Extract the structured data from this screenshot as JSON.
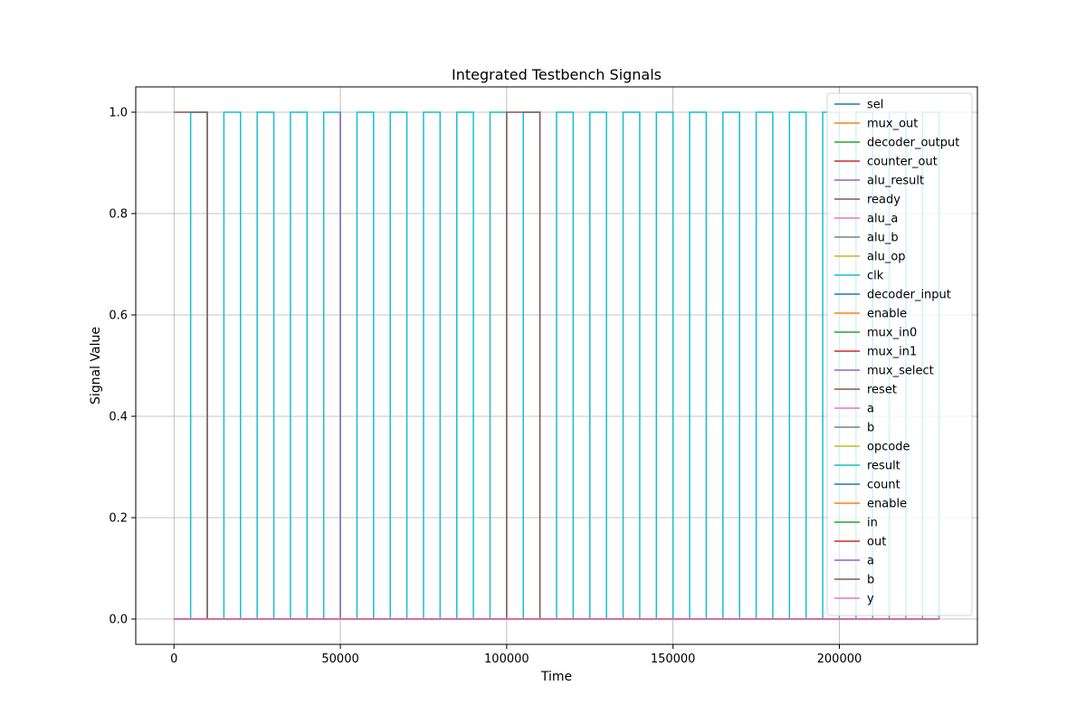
{
  "chart_data": {
    "type": "line",
    "title": "Integrated Testbench Signals",
    "xlabel": "Time",
    "ylabel": "Signal Value",
    "xlim": [
      -11500,
      241500
    ],
    "ylim": [
      -0.05,
      1.05
    ],
    "xticks": [
      0,
      50000,
      100000,
      150000,
      200000
    ],
    "xtick_labels": [
      "0",
      "50000",
      "100000",
      "150000",
      "200000"
    ],
    "yticks": [
      0.0,
      0.2,
      0.4,
      0.6,
      0.8,
      1.0
    ],
    "ytick_labels": [
      "0.0",
      "0.2",
      "0.4",
      "0.6",
      "0.8",
      "1.0"
    ],
    "grid": true,
    "legend_position": "upper-right",
    "series": [
      {
        "name": "sel",
        "color": "#1f77b4",
        "drawstyle": "steps-post",
        "points": [
          [
            0,
            0
          ],
          [
            230000,
            0
          ]
        ]
      },
      {
        "name": "mux_out",
        "color": "#ff7f0e",
        "drawstyle": "steps-post",
        "points": [
          [
            0,
            0
          ],
          [
            230000,
            0
          ]
        ]
      },
      {
        "name": "decoder_output",
        "color": "#2ca02c",
        "drawstyle": "steps-post",
        "points": [
          [
            0,
            0
          ],
          [
            230000,
            0
          ]
        ]
      },
      {
        "name": "counter_out",
        "color": "#d62728",
        "drawstyle": "steps-post",
        "points": [
          [
            0,
            0
          ],
          [
            230000,
            0
          ]
        ]
      },
      {
        "name": "alu_result",
        "color": "#9467bd",
        "drawstyle": "steps-post",
        "points": [
          [
            0,
            0
          ],
          [
            230000,
            0
          ]
        ]
      },
      {
        "name": "ready",
        "color": "#8c564b",
        "drawstyle": "steps-post",
        "points": [
          [
            0,
            0
          ],
          [
            230000,
            0
          ]
        ]
      },
      {
        "name": "alu_a",
        "color": "#e377c2",
        "drawstyle": "steps-post",
        "points": [
          [
            0,
            0
          ],
          [
            230000,
            0
          ]
        ]
      },
      {
        "name": "alu_b",
        "color": "#7f7f7f",
        "drawstyle": "steps-post",
        "points": [
          [
            0,
            0
          ],
          [
            230000,
            0
          ]
        ]
      },
      {
        "name": "alu_op",
        "color": "#bcbd22",
        "drawstyle": "steps-post",
        "points": [
          [
            0,
            0
          ],
          [
            230000,
            0
          ]
        ]
      },
      {
        "name": "clk",
        "color": "#17becf",
        "drawstyle": "steps-post",
        "points": [
          [
            0,
            0
          ],
          [
            5000,
            1
          ],
          [
            10000,
            0
          ],
          [
            15000,
            1
          ],
          [
            20000,
            0
          ],
          [
            25000,
            1
          ],
          [
            30000,
            0
          ],
          [
            35000,
            1
          ],
          [
            40000,
            0
          ],
          [
            45000,
            1
          ],
          [
            50000,
            0
          ],
          [
            55000,
            1
          ],
          [
            60000,
            0
          ],
          [
            65000,
            1
          ],
          [
            70000,
            0
          ],
          [
            75000,
            1
          ],
          [
            80000,
            0
          ],
          [
            85000,
            1
          ],
          [
            90000,
            0
          ],
          [
            95000,
            1
          ],
          [
            100000,
            0
          ],
          [
            105000,
            1
          ],
          [
            110000,
            0
          ],
          [
            115000,
            1
          ],
          [
            120000,
            0
          ],
          [
            125000,
            1
          ],
          [
            130000,
            0
          ],
          [
            135000,
            1
          ],
          [
            140000,
            0
          ],
          [
            145000,
            1
          ],
          [
            150000,
            0
          ],
          [
            155000,
            1
          ],
          [
            160000,
            0
          ],
          [
            165000,
            1
          ],
          [
            170000,
            0
          ],
          [
            175000,
            1
          ],
          [
            180000,
            0
          ],
          [
            185000,
            1
          ],
          [
            190000,
            0
          ],
          [
            195000,
            1
          ],
          [
            200000,
            0
          ],
          [
            205000,
            1
          ],
          [
            210000,
            0
          ],
          [
            215000,
            1
          ],
          [
            220000,
            0
          ],
          [
            225000,
            1
          ],
          [
            230000,
            0
          ]
        ]
      },
      {
        "name": "decoder_input",
        "color": "#1f77b4",
        "drawstyle": "steps-post",
        "points": [
          [
            0,
            0
          ],
          [
            230000,
            0
          ]
        ]
      },
      {
        "name": "enable",
        "color": "#ff7f0e",
        "drawstyle": "steps-post",
        "points": [
          [
            0,
            0
          ],
          [
            230000,
            0
          ]
        ]
      },
      {
        "name": "mux_in0",
        "color": "#2ca02c",
        "drawstyle": "steps-post",
        "points": [
          [
            0,
            0
          ],
          [
            230000,
            0
          ]
        ]
      },
      {
        "name": "mux_in1",
        "color": "#d62728",
        "drawstyle": "steps-post",
        "points": [
          [
            0,
            0
          ],
          [
            230000,
            0
          ]
        ]
      },
      {
        "name": "mux_select",
        "color": "#9467bd",
        "drawstyle": "steps-post",
        "points": [
          [
            0,
            0
          ],
          [
            50000,
            1
          ],
          [
            50000,
            0
          ],
          [
            230000,
            0
          ]
        ]
      },
      {
        "name": "reset",
        "color": "#8c564b",
        "drawstyle": "steps-post",
        "points": [
          [
            0,
            1
          ],
          [
            10000,
            0
          ],
          [
            100000,
            1
          ],
          [
            110000,
            0
          ],
          [
            230000,
            0
          ]
        ]
      },
      {
        "name": "a",
        "color": "#e377c2",
        "drawstyle": "steps-post",
        "points": [
          [
            0,
            0
          ],
          [
            230000,
            0
          ]
        ]
      },
      {
        "name": "b",
        "color": "#7f7f7f",
        "drawstyle": "steps-post",
        "points": [
          [
            0,
            0
          ],
          [
            230000,
            0
          ]
        ]
      },
      {
        "name": "opcode",
        "color": "#bcbd22",
        "drawstyle": "steps-post",
        "points": [
          [
            0,
            0
          ],
          [
            230000,
            0
          ]
        ]
      },
      {
        "name": "result",
        "color": "#17becf",
        "drawstyle": "steps-post",
        "points": [
          [
            0,
            0
          ],
          [
            230000,
            0
          ]
        ]
      },
      {
        "name": "count",
        "color": "#1f77b4",
        "drawstyle": "steps-post",
        "points": [
          [
            0,
            0
          ],
          [
            230000,
            0
          ]
        ]
      },
      {
        "name": "enable",
        "color": "#ff7f0e",
        "drawstyle": "steps-post",
        "points": [
          [
            0,
            0
          ],
          [
            230000,
            0
          ]
        ]
      },
      {
        "name": "in",
        "color": "#2ca02c",
        "drawstyle": "steps-post",
        "points": [
          [
            0,
            0
          ],
          [
            230000,
            0
          ]
        ]
      },
      {
        "name": "out",
        "color": "#d62728",
        "drawstyle": "steps-post",
        "points": [
          [
            0,
            0
          ],
          [
            230000,
            0
          ]
        ]
      },
      {
        "name": "a",
        "color": "#9467bd",
        "drawstyle": "steps-post",
        "points": [
          [
            0,
            0
          ],
          [
            230000,
            0
          ]
        ]
      },
      {
        "name": "b",
        "color": "#8c564b",
        "drawstyle": "steps-post",
        "points": [
          [
            0,
            0
          ],
          [
            230000,
            0
          ]
        ]
      },
      {
        "name": "y",
        "color": "#e377c2",
        "drawstyle": "steps-post",
        "points": [
          [
            0,
            0
          ],
          [
            230000,
            0
          ]
        ]
      }
    ]
  }
}
